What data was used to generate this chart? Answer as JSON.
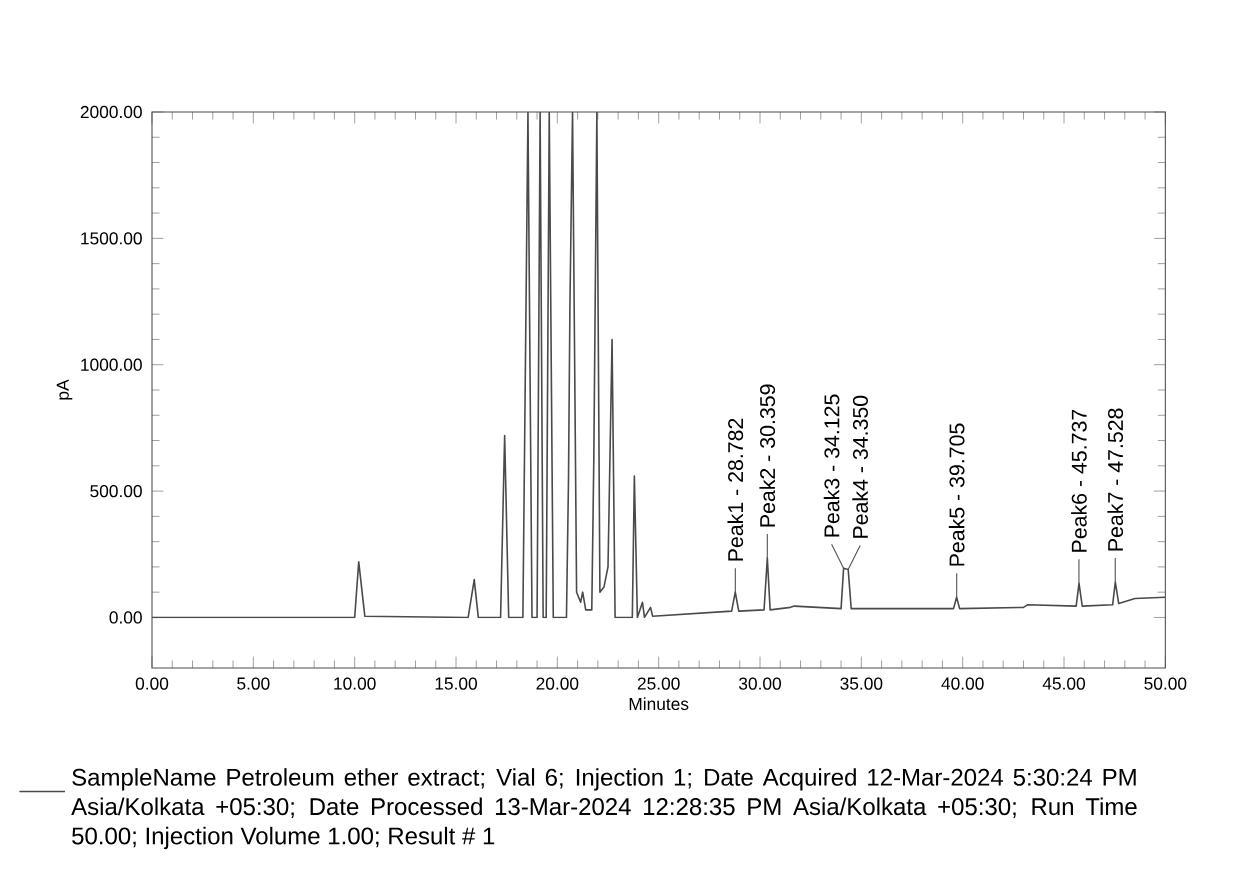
{
  "chart_data": {
    "type": "line",
    "xlabel": "Minutes",
    "ylabel": "pA",
    "xlim": [
      0,
      50
    ],
    "ylim": [
      -200,
      2000
    ],
    "xticks": [
      {
        "value": 0,
        "label": "0.00"
      },
      {
        "value": 5,
        "label": "5.00"
      },
      {
        "value": 10,
        "label": "10.00"
      },
      {
        "value": 15,
        "label": "15.00"
      },
      {
        "value": 20,
        "label": "20.00"
      },
      {
        "value": 25,
        "label": "25.00"
      },
      {
        "value": 30,
        "label": "30.00"
      },
      {
        "value": 35,
        "label": "35.00"
      },
      {
        "value": 40,
        "label": "40.00"
      },
      {
        "value": 45,
        "label": "45.00"
      },
      {
        "value": 50,
        "label": "50.00"
      }
    ],
    "yticks": [
      {
        "value": 0,
        "label": "0.00"
      },
      {
        "value": 500,
        "label": "500.00"
      },
      {
        "value": 1000,
        "label": "1000.00"
      },
      {
        "value": 1500,
        "label": "1500.00"
      },
      {
        "value": 2000,
        "label": "2000.00"
      }
    ],
    "grid": false,
    "legend": "bottom",
    "marker": "none",
    "line_style": "solid",
    "series": [
      {
        "name": "SampleName Petroleum ether extract;    Vial 6;    Injection 1;    Date Acquired 12-Mar-2024 5:30:24 PM Asia/Kolkata +05:30; Date Processed 13-Mar-2024 12:28:35 PM Asia/Kolkata +05:30; Run Time 50.00; Injection Volume 1.00; Result # 1",
        "color": "#4a4a4a",
        "x": [
          0,
          10.0,
          10.2,
          10.5,
          15.6,
          15.9,
          16.1,
          17.2,
          17.4,
          17.6,
          18.3,
          18.55,
          18.75,
          19.0,
          19.15,
          19.3,
          19.45,
          19.6,
          19.8,
          20.45,
          20.55,
          20.62,
          20.75,
          20.95,
          21.15,
          21.25,
          21.4,
          21.7,
          21.8,
          21.95,
          22.1,
          22.3,
          22.5,
          22.7,
          22.85,
          23.7,
          23.8,
          23.95,
          24.2,
          24.3,
          24.6,
          24.7,
          28.6,
          28.78,
          28.95,
          30.2,
          30.36,
          30.5,
          31.5,
          31.7,
          34.0,
          34.125,
          34.35,
          34.5,
          39.55,
          39.7,
          39.85,
          43.0,
          43.2,
          45.6,
          45.74,
          45.9,
          47.4,
          47.53,
          47.7,
          48.5,
          50
        ],
        "values": [
          0,
          0,
          220,
          5,
          0,
          150,
          0,
          0,
          720,
          0,
          0,
          2000,
          0,
          0,
          2000,
          0,
          0,
          2000,
          0,
          0,
          540,
          1225,
          2000,
          100,
          60,
          100,
          30,
          30,
          630,
          2000,
          100,
          120,
          200,
          1100,
          0,
          0,
          560,
          0,
          60,
          0,
          40,
          5,
          25,
          100,
          25,
          30,
          235,
          30,
          40,
          45,
          35,
          195,
          190,
          35,
          35,
          80,
          35,
          40,
          50,
          45,
          135,
          45,
          50,
          140,
          55,
          75,
          80
        ]
      }
    ],
    "annotations": [
      {
        "text": "Peak1 - 28.782",
        "x": 28.782,
        "y": 100
      },
      {
        "text": "Peak2 - 30.359",
        "x": 30.359,
        "y": 235
      },
      {
        "text": "Peak3 - 34.125",
        "x": 34.125,
        "y": 195
      },
      {
        "text": "Peak4 - 34.350",
        "x": 34.35,
        "y": 190
      },
      {
        "text": "Peak5 - 39.705",
        "x": 39.705,
        "y": 80
      },
      {
        "text": "Peak6 - 45.737",
        "x": 45.737,
        "y": 135
      },
      {
        "text": "Peak7 - 47.528",
        "x": 47.528,
        "y": 140
      }
    ]
  }
}
